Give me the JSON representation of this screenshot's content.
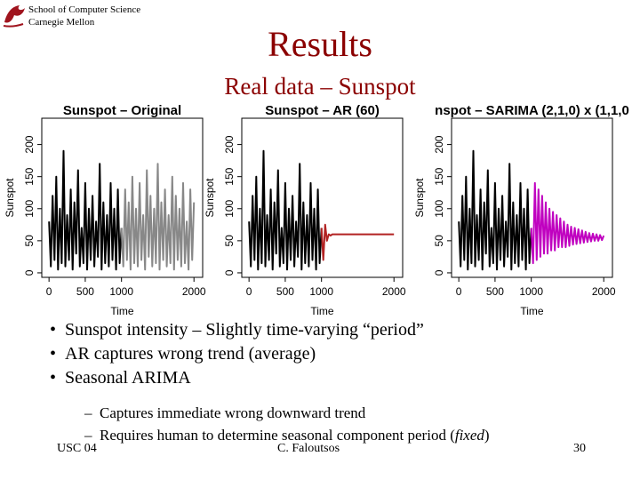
{
  "header": {
    "org_line1": "School of Computer Science",
    "org_line2": "Carnegie Mellon"
  },
  "title": "Results",
  "subtitle": "Real data – Sunspot",
  "chart_data": [
    {
      "type": "line",
      "title": "Sunspot  – Original",
      "x_label": "Time",
      "y_label": "Sunspot",
      "x": [
        0,
        25,
        50,
        75,
        100,
        125,
        150,
        175,
        200,
        225,
        250,
        275,
        300,
        325,
        350,
        375,
        400,
        425,
        450,
        475,
        500,
        525,
        550,
        575,
        600,
        625,
        650,
        675,
        700,
        725,
        750,
        775,
        800,
        825,
        850,
        875,
        900,
        925,
        950,
        975,
        1000,
        1025,
        1050,
        1075,
        1100,
        1125,
        1150,
        1175,
        1200,
        1225,
        1250,
        1275,
        1300,
        1325,
        1350,
        1375,
        1400,
        1425,
        1450,
        1475,
        1500,
        1525,
        1550,
        1575,
        1600,
        1625,
        1650,
        1675,
        1700,
        1725,
        1750,
        1775,
        1800,
        1825,
        1850,
        1875,
        1900,
        1925,
        1950,
        1975,
        2000
      ],
      "xlim": [
        -100,
        2120
      ],
      "ylim": [
        -7,
        241
      ],
      "xticks": [
        0,
        500,
        1000,
        2000
      ],
      "yticks": [
        0,
        50,
        100,
        150,
        200
      ],
      "series": [
        {
          "color": "#000000",
          "values": [
            80,
            10,
            120,
            20,
            150,
            5,
            100,
            15,
            190,
            10,
            90,
            20,
            130,
            5,
            110,
            30,
            160,
            10,
            70,
            15,
            140,
            5,
            100,
            20,
            120,
            10,
            80,
            25,
            170,
            5,
            110,
            15,
            90,
            10,
            140,
            20,
            100,
            5,
            130,
            15,
            70,
            null,
            null,
            null,
            null,
            null,
            null,
            null,
            null,
            null,
            null,
            null,
            null,
            null,
            null,
            null,
            null,
            null,
            null,
            null,
            null,
            null,
            null,
            null,
            null,
            null,
            null,
            null,
            null,
            null,
            null,
            null,
            null,
            null,
            null,
            null,
            null,
            null,
            null,
            null,
            null
          ]
        },
        {
          "color": "#888888",
          "values": [
            null,
            null,
            null,
            null,
            null,
            null,
            null,
            null,
            null,
            null,
            null,
            null,
            null,
            null,
            null,
            null,
            null,
            null,
            null,
            null,
            null,
            null,
            null,
            null,
            null,
            null,
            null,
            null,
            null,
            null,
            null,
            null,
            null,
            null,
            null,
            null,
            null,
            null,
            null,
            null,
            70,
            10,
            130,
            20,
            110,
            5,
            150,
            15,
            100,
            10,
            140,
            20,
            90,
            5,
            160,
            25,
            120,
            10,
            100,
            15,
            170,
            5,
            110,
            20,
            130,
            10,
            90,
            15,
            150,
            5,
            120,
            20,
            100,
            10,
            140,
            15,
            80,
            5,
            130,
            20,
            110
          ]
        }
      ]
    },
    {
      "type": "line",
      "title": "Sunspot – AR (60)",
      "x_label": "Time",
      "y_label": "Sunspot",
      "x": [
        0,
        25,
        50,
        75,
        100,
        125,
        150,
        175,
        200,
        225,
        250,
        275,
        300,
        325,
        350,
        375,
        400,
        425,
        450,
        475,
        500,
        525,
        550,
        575,
        600,
        625,
        650,
        675,
        700,
        725,
        750,
        775,
        800,
        825,
        850,
        875,
        900,
        925,
        950,
        975,
        1000,
        1025,
        1050,
        1075,
        1100,
        1125,
        1150,
        1175,
        1200,
        1225,
        1250,
        1275,
        1300,
        1325,
        1350,
        1375,
        1400,
        1425,
        1450,
        1475,
        1500,
        1525,
        1550,
        1575,
        1600,
        1625,
        1650,
        1675,
        1700,
        1725,
        1750,
        1775,
        1800,
        1825,
        1850,
        1875,
        1900,
        1925,
        1950,
        1975,
        2000
      ],
      "xlim": [
        -100,
        2120
      ],
      "ylim": [
        -7,
        241
      ],
      "xticks": [
        0,
        500,
        1000,
        2000
      ],
      "yticks": [
        0,
        50,
        100,
        150,
        200
      ],
      "series": [
        {
          "color": "#000000",
          "values": [
            80,
            10,
            120,
            20,
            150,
            5,
            100,
            15,
            190,
            10,
            90,
            20,
            130,
            5,
            110,
            30,
            160,
            10,
            70,
            15,
            140,
            5,
            100,
            20,
            120,
            10,
            80,
            25,
            170,
            5,
            110,
            15,
            90,
            10,
            140,
            20,
            100,
            5,
            130,
            15,
            70,
            null,
            null,
            null,
            null,
            null,
            null,
            null,
            null,
            null,
            null,
            null,
            null,
            null,
            null,
            null,
            null,
            null,
            null,
            null,
            null,
            null,
            null,
            null,
            null,
            null,
            null,
            null,
            null,
            null,
            null,
            null,
            null,
            null,
            null,
            null,
            null,
            null,
            null,
            null,
            null
          ]
        },
        {
          "color": "#b22222",
          "values": [
            null,
            null,
            null,
            null,
            null,
            null,
            null,
            null,
            null,
            null,
            null,
            null,
            null,
            null,
            null,
            null,
            null,
            null,
            null,
            null,
            null,
            null,
            null,
            null,
            null,
            null,
            null,
            null,
            null,
            null,
            null,
            null,
            null,
            null,
            null,
            null,
            null,
            null,
            null,
            null,
            70,
            20,
            75,
            50,
            60,
            58,
            60,
            60,
            60,
            60,
            60,
            60,
            60,
            60,
            60,
            60,
            60,
            60,
            60,
            60,
            60,
            60,
            60,
            60,
            60,
            60,
            60,
            60,
            60,
            60,
            60,
            60,
            60,
            60,
            60,
            60,
            60,
            60,
            60,
            60,
            60
          ]
        }
      ]
    },
    {
      "type": "line",
      "title": "nspot – SARIMA (2,1,0) x (1,1,0",
      "x_label": "Time",
      "y_label": "Sunspot",
      "x": [
        0,
        25,
        50,
        75,
        100,
        125,
        150,
        175,
        200,
        225,
        250,
        275,
        300,
        325,
        350,
        375,
        400,
        425,
        450,
        475,
        500,
        525,
        550,
        575,
        600,
        625,
        650,
        675,
        700,
        725,
        750,
        775,
        800,
        825,
        850,
        875,
        900,
        925,
        950,
        975,
        1000,
        1025,
        1050,
        1075,
        1100,
        1125,
        1150,
        1175,
        1200,
        1225,
        1250,
        1275,
        1300,
        1325,
        1350,
        1375,
        1400,
        1425,
        1450,
        1475,
        1500,
        1525,
        1550,
        1575,
        1600,
        1625,
        1650,
        1675,
        1700,
        1725,
        1750,
        1775,
        1800,
        1825,
        1850,
        1875,
        1900,
        1925,
        1950,
        1975,
        2000
      ],
      "xlim": [
        -100,
        2120
      ],
      "ylim": [
        -7,
        241
      ],
      "xticks": [
        0,
        500,
        1000,
        2000
      ],
      "yticks": [
        0,
        50,
        100,
        150,
        200
      ],
      "series": [
        {
          "color": "#000000",
          "values": [
            80,
            10,
            120,
            20,
            150,
            5,
            100,
            15,
            190,
            10,
            90,
            20,
            130,
            5,
            110,
            30,
            160,
            10,
            70,
            15,
            140,
            5,
            100,
            20,
            120,
            10,
            80,
            25,
            170,
            5,
            110,
            15,
            90,
            10,
            140,
            20,
            100,
            5,
            130,
            15,
            70,
            null,
            null,
            null,
            null,
            null,
            null,
            null,
            null,
            null,
            null,
            null,
            null,
            null,
            null,
            null,
            null,
            null,
            null,
            null,
            null,
            null,
            null,
            null,
            null,
            null,
            null,
            null,
            null,
            null,
            null,
            null,
            null,
            null,
            null,
            null,
            null,
            null,
            null,
            null,
            null
          ]
        },
        {
          "color": "#c000c0",
          "values": [
            null,
            null,
            null,
            null,
            null,
            null,
            null,
            null,
            null,
            null,
            null,
            null,
            null,
            null,
            null,
            null,
            null,
            null,
            null,
            null,
            null,
            null,
            null,
            null,
            null,
            null,
            null,
            null,
            null,
            null,
            null,
            null,
            null,
            null,
            null,
            null,
            null,
            null,
            null,
            null,
            70,
            15,
            140,
            20,
            130,
            25,
            120,
            30,
            110,
            30,
            100,
            35,
            95,
            35,
            90,
            40,
            85,
            40,
            80,
            40,
            75,
            42,
            72,
            44,
            70,
            45,
            68,
            46,
            66,
            47,
            64,
            48,
            62,
            49,
            61,
            50,
            60,
            50,
            59,
            51,
            58
          ]
        }
      ]
    }
  ],
  "bullets": [
    "Sunspot intensity – Slightly time-varying “period”",
    "AR captures wrong trend (average)",
    "Seasonal ARIMA"
  ],
  "sub_bullets": [
    {
      "text": "Captures immediate wrong downward trend"
    },
    {
      "text": "Requires human to determine seasonal component period (",
      "emphasis": "fixed",
      "tail": ")"
    }
  ],
  "footer": {
    "left": "USC 04",
    "center": "C. Faloutsos",
    "page": "30"
  }
}
